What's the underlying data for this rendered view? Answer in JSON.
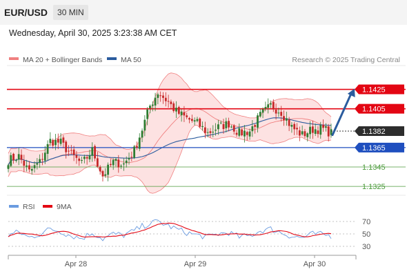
{
  "header": {
    "symbol": "EUR/USD",
    "timeframe": "30 MIN",
    "datetime": "Wednesday, April 30, 2025 3:23:38 AM CET"
  },
  "colors": {
    "bollinger_line": "#f08080",
    "bollinger_fill": "#fde2e2",
    "ma50": "#2b5c9e",
    "bull_candle": "#2e7d32",
    "bear_candle": "#c62828",
    "resistance": "#e30613",
    "support_blue": "#1f4fbf",
    "support_green": "#4a9a3a",
    "arrow": "#2b5c9e",
    "rsi_line": "#6a9be0",
    "rsi_ma": "#e30613"
  },
  "chart_data": [
    {
      "type": "candlestick",
      "title": "",
      "legend": [
        {
          "name": "MA 20 + Bollinger Bands",
          "color": "#f08080"
        },
        {
          "name": "MA 50",
          "color": "#2b5c9e"
        }
      ],
      "legend_placement": "top-left",
      "watermark": "Research © 2025 Trading Central",
      "current_price": {
        "label": "1.1382",
        "value": 1.1382
      },
      "levels": [
        {
          "label": "1.1425",
          "value": 1.1425,
          "kind": "resistance",
          "color": "#e30613",
          "tag": true
        },
        {
          "label": "1.1405",
          "value": 1.1405,
          "kind": "resistance",
          "color": "#e30613",
          "tag": true
        },
        {
          "label": "1.1365",
          "value": 1.1365,
          "kind": "support",
          "color": "#1f4fbf",
          "tag": true
        },
        {
          "label": "1.1345",
          "value": 1.1345,
          "kind": "support",
          "color": "#4a9a3a",
          "tag": false
        },
        {
          "label": "1.1325",
          "value": 1.1325,
          "kind": "support",
          "color": "#4a9a3a",
          "tag": false
        }
      ],
      "projection": {
        "direction": "up",
        "from": 1.1378,
        "to": 1.1425
      },
      "x_tick_labels": [
        "Apr 28",
        "Apr 29",
        "Apr 30"
      ],
      "close_anchors": [
        [
          0,
          1.1352
        ],
        [
          4,
          1.1356
        ],
        [
          8,
          1.134
        ],
        [
          12,
          1.135
        ],
        [
          16,
          1.1372
        ],
        [
          20,
          1.137
        ],
        [
          24,
          1.1358
        ],
        [
          28,
          1.1348
        ],
        [
          32,
          1.1362
        ],
        [
          36,
          1.1336
        ],
        [
          40,
          1.135
        ],
        [
          44,
          1.1348
        ],
        [
          48,
          1.1362
        ],
        [
          51,
          1.1384
        ],
        [
          54,
          1.1408
        ],
        [
          57,
          1.1422
        ],
        [
          61,
          1.1412
        ],
        [
          64,
          1.1402
        ],
        [
          68,
          1.1395
        ],
        [
          72,
          1.139
        ],
        [
          76,
          1.138
        ],
        [
          80,
          1.1386
        ],
        [
          84,
          1.139
        ],
        [
          88,
          1.138
        ],
        [
          92,
          1.1382
        ],
        [
          96,
          1.1398
        ],
        [
          100,
          1.1408
        ],
        [
          104,
          1.1402
        ],
        [
          108,
          1.1386
        ],
        [
          112,
          1.1378
        ],
        [
          116,
          1.1384
        ],
        [
          120,
          1.1384
        ],
        [
          123,
          1.138
        ]
      ]
    },
    {
      "type": "line",
      "title": "",
      "legend": [
        {
          "name": "RSI",
          "color": "#6a9be0"
        },
        {
          "name": "9MA",
          "color": "#e30613"
        }
      ],
      "legend_placement": "top-left",
      "y_ticks": [
        70,
        50,
        30
      ],
      "ylim": [
        20,
        80
      ],
      "x_tick_labels": [
        "Apr 28",
        "Apr 29",
        "Apr 30"
      ],
      "rsi_anchors": [
        [
          0,
          48
        ],
        [
          4,
          53
        ],
        [
          8,
          44
        ],
        [
          12,
          50
        ],
        [
          16,
          58
        ],
        [
          20,
          54
        ],
        [
          24,
          47
        ],
        [
          28,
          43
        ],
        [
          32,
          52
        ],
        [
          36,
          42
        ],
        [
          40,
          50
        ],
        [
          44,
          48
        ],
        [
          48,
          55
        ],
        [
          51,
          62
        ],
        [
          54,
          67
        ],
        [
          57,
          70
        ],
        [
          61,
          63
        ],
        [
          64,
          58
        ],
        [
          68,
          52
        ],
        [
          72,
          48
        ],
        [
          76,
          45
        ],
        [
          80,
          50
        ],
        [
          84,
          52
        ],
        [
          88,
          45
        ],
        [
          92,
          47
        ],
        [
          96,
          55
        ],
        [
          100,
          58
        ],
        [
          104,
          52
        ],
        [
          108,
          46
        ],
        [
          112,
          44
        ],
        [
          116,
          50
        ],
        [
          120,
          49
        ],
        [
          123,
          47
        ]
      ]
    }
  ]
}
